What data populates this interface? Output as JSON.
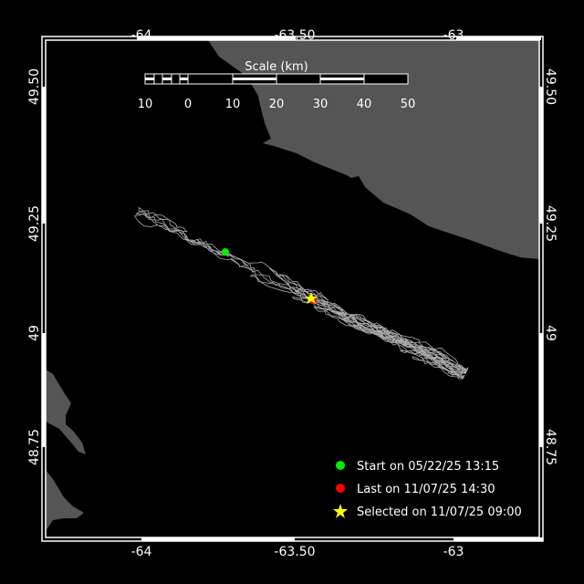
{
  "map": {
    "colors": {
      "background": "#000000",
      "water": "#000000",
      "land": "#555555",
      "frame": "#ffffff",
      "track": "#aaaaaa",
      "start": "#00ee00",
      "last": "#ff0000",
      "selected": "#ffff00"
    },
    "lon_ticks": [
      "-64",
      "-63.50",
      "-63"
    ],
    "lat_ticks": [
      "49.50",
      "49.25",
      "49",
      "48.75"
    ],
    "scale": {
      "title": "Scale (km)",
      "labels": [
        "10",
        "0",
        "10",
        "20",
        "30",
        "40",
        "50"
      ]
    },
    "legend": [
      {
        "icon": "green-dot-icon",
        "label": "Start on 05/22/25 13:15"
      },
      {
        "icon": "red-dot-icon",
        "label": "Last on 11/07/25 14:30"
      },
      {
        "icon": "yellow-star-icon",
        "label": "Selected on 11/07/25 09:00"
      }
    ]
  }
}
